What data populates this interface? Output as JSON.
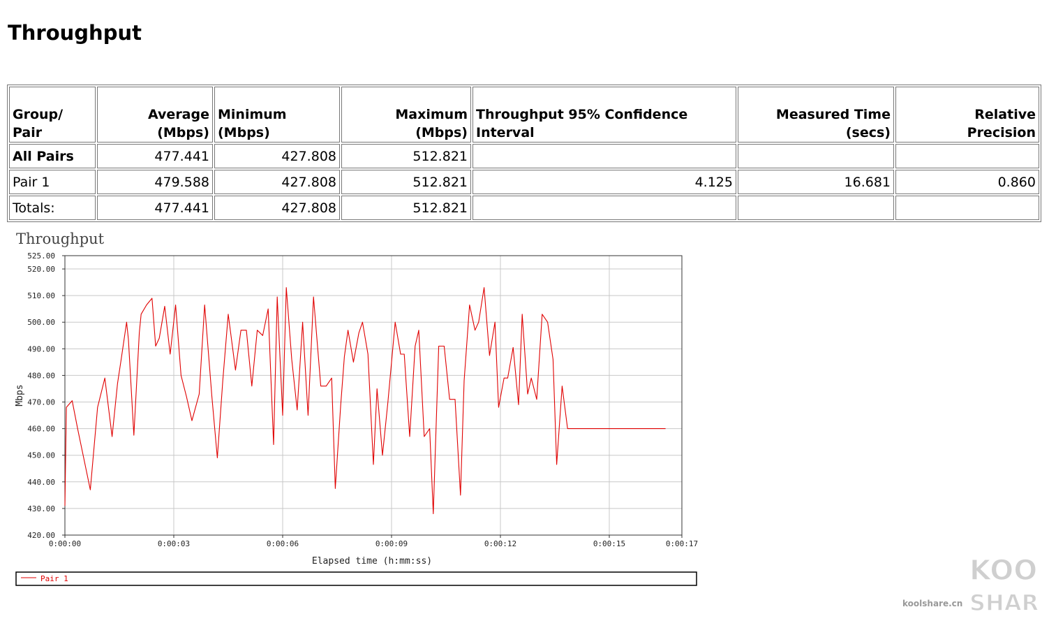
{
  "page": {
    "title": "Throughput"
  },
  "table": {
    "headers": [
      [
        "Group/",
        "Pair"
      ],
      [
        "Average",
        "(Mbps)"
      ],
      [
        "",
        "Minimum (Mbps)"
      ],
      [
        "Maximum",
        "(Mbps)"
      ],
      [
        "",
        "Throughput 95% Confidence Interval"
      ],
      [
        "Measured Time",
        "(secs)"
      ],
      [
        "Relative",
        "Precision"
      ]
    ],
    "rows": [
      [
        "All Pairs",
        "477.441",
        "427.808",
        "512.821",
        "",
        "",
        ""
      ],
      [
        "Pair 1",
        "479.588",
        "427.808",
        "512.821",
        "4.125",
        "16.681",
        "0.860"
      ],
      [
        "Totals:",
        "477.441",
        "427.808",
        "512.821",
        "",
        "",
        ""
      ]
    ]
  },
  "chart_data": {
    "type": "line",
    "title": "Throughput",
    "xlabel": "Elapsed time (h:mm:ss)",
    "ylabel": "Mbps",
    "xlim": [
      0,
      17
    ],
    "ylim": [
      420,
      525
    ],
    "x_ticks": [
      0,
      3,
      6,
      9,
      12,
      15,
      17
    ],
    "x_tick_labels": [
      "0:00:00",
      "0:00:03",
      "0:00:06",
      "0:00:09",
      "0:00:12",
      "0:00:15",
      "0:00:17"
    ],
    "y_ticks": [
      420,
      430,
      440,
      450,
      460,
      470,
      480,
      490,
      500,
      510,
      520,
      525
    ],
    "y_tick_labels": [
      "420.00",
      "430.00",
      "440.00",
      "450.00",
      "460.00",
      "470.00",
      "480.00",
      "490.00",
      "500.00",
      "510.00",
      "520.00",
      "525.00"
    ],
    "grid": true,
    "legend_position": "bottom",
    "series": [
      {
        "name": "Pair 1",
        "color": "#e00000",
        "x": [
          0,
          0.04,
          0.2,
          0.35,
          0.7,
          0.9,
          1.1,
          1.3,
          1.45,
          1.55,
          1.7,
          1.75,
          1.9,
          2.05,
          2.1,
          2.25,
          2.4,
          2.5,
          2.6,
          2.75,
          2.9,
          3.05,
          3.2,
          3.35,
          3.5,
          3.7,
          3.85,
          4.05,
          4.2,
          4.35,
          4.5,
          4.7,
          4.85,
          5.0,
          5.15,
          5.3,
          5.45,
          5.6,
          5.75,
          5.85,
          6.0,
          6.1,
          6.25,
          6.4,
          6.55,
          6.7,
          6.85,
          7.05,
          7.2,
          7.35,
          7.45,
          7.6,
          7.7,
          7.8,
          7.95,
          8.1,
          8.2,
          8.35,
          8.5,
          8.6,
          8.75,
          8.9,
          9.0,
          9.1,
          9.25,
          9.35,
          9.5,
          9.65,
          9.75,
          9.9,
          10.05,
          10.15,
          10.3,
          10.45,
          10.6,
          10.75,
          10.9,
          11.0,
          11.15,
          11.3,
          11.4,
          11.55,
          11.7,
          11.85,
          11.95,
          12.1,
          12.2,
          12.35,
          12.5,
          12.6,
          12.75,
          12.85,
          13.0,
          13.15,
          13.3,
          13.45,
          13.55,
          13.7,
          13.85,
          13.95,
          14.1,
          14.25,
          14.4,
          14.5,
          14.6,
          14.75,
          14.85,
          15.0,
          15.1,
          15.25,
          15.4,
          15.55,
          15.7,
          15.85,
          15.95,
          16.05,
          16.2,
          16.35,
          16.45,
          16.55
        ],
        "values": [
          431,
          468,
          470.5,
          460,
          437,
          468,
          479,
          457,
          477,
          486,
          500,
          493.5,
          457.5,
          496,
          503,
          506.5,
          509,
          491,
          494,
          506,
          488,
          506.5,
          480,
          472,
          463,
          473,
          506.5,
          472,
          449,
          478,
          503,
          482,
          497,
          497,
          476,
          497,
          495,
          505,
          454,
          509.5,
          465,
          513,
          486,
          467,
          500,
          465,
          509.5,
          476,
          476,
          479,
          437.5,
          469,
          487,
          497,
          485,
          496,
          500,
          488,
          446.5,
          475,
          450,
          470,
          485,
          500,
          488,
          488,
          457,
          491,
          497,
          457,
          460,
          428,
          491,
          491,
          471,
          471,
          435,
          478,
          506.5,
          497,
          500,
          513,
          487.5,
          500,
          468,
          479,
          479,
          490.5,
          469,
          503,
          473,
          479,
          471,
          503,
          500,
          486,
          446.5,
          476,
          460,
          460,
          460,
          460,
          460,
          460,
          460,
          460,
          460,
          460,
          460,
          460,
          460,
          460,
          460,
          460,
          460,
          460,
          460,
          460,
          460,
          460
        ]
      }
    ]
  },
  "watermark": {
    "brand": "KOOLSHARE",
    "top": "KOOK",
    "bottom": "SHARE",
    "site": "koolshare.cn"
  }
}
